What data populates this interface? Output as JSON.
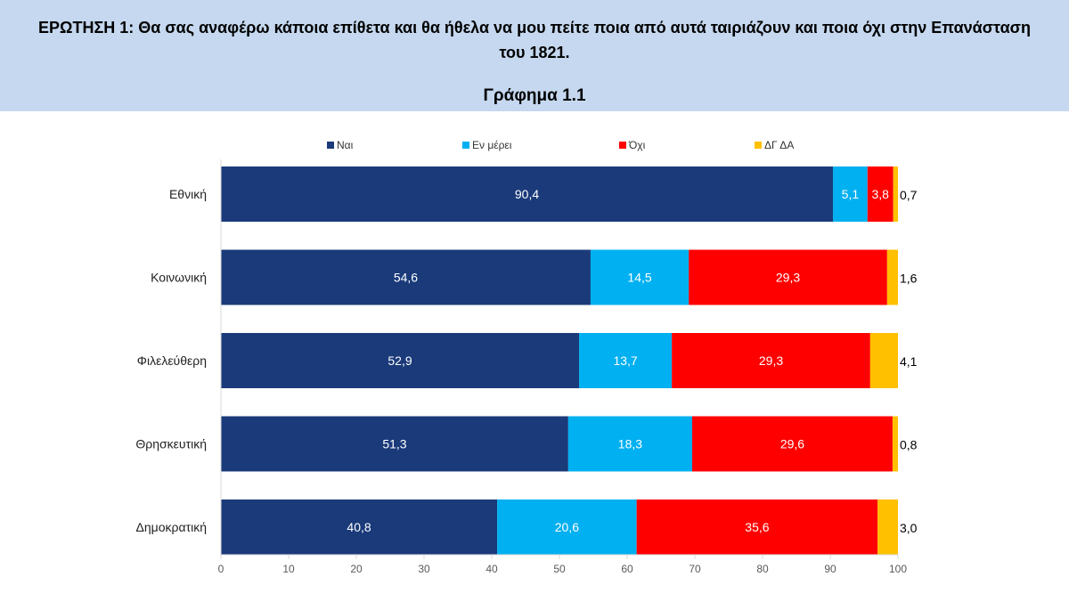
{
  "header": {
    "question": "ΕΡΩΤΗΣΗ 1: Θα σας αναφέρω κάποια επίθετα και θα ήθελα να μου πείτε ποια από αυτά ταιριάζουν και ποια όχι στην Επανάσταση του 1821.",
    "chart_title": "Γράφημα 1.1"
  },
  "chart_data": {
    "type": "bar",
    "orientation": "horizontal",
    "stacked": true,
    "title": "Γράφημα 1.1",
    "categories": [
      "Εθνική",
      "Κοινωνική",
      "Φιλελεύθερη",
      "Θρησκευτική",
      "Δημοκρατική"
    ],
    "series": [
      {
        "name": "Ναι",
        "color": "#1a3a7a",
        "values": [
          90.4,
          54.6,
          52.9,
          51.3,
          40.8
        ],
        "labels": [
          "90,4",
          "54,6",
          "52,9",
          "51,3",
          "40,8"
        ]
      },
      {
        "name": "Εν μέρει",
        "color": "#00b0f0",
        "values": [
          5.1,
          14.5,
          13.7,
          18.3,
          20.6
        ],
        "labels": [
          "5,1",
          "14,5",
          "13,7",
          "18,3",
          "20,6"
        ]
      },
      {
        "name": "Όχι",
        "color": "#ff0000",
        "values": [
          3.8,
          29.3,
          29.3,
          29.6,
          35.6
        ],
        "labels": [
          "3,8",
          "29,3",
          "29,3",
          "29,6",
          "35,6"
        ]
      },
      {
        "name": "ΔΓ ΔΑ",
        "color": "#ffc000",
        "values": [
          0.7,
          1.6,
          4.1,
          0.8,
          3.0
        ],
        "labels": [
          "0,7",
          "1,6",
          "4,1",
          "0,8",
          "3,0"
        ]
      }
    ],
    "xlim": [
      0,
      100
    ],
    "xticks": [
      "0",
      "10",
      "20",
      "30",
      "40",
      "50",
      "60",
      "70",
      "80",
      "90",
      "100"
    ],
    "legend": "top",
    "grid": false
  }
}
